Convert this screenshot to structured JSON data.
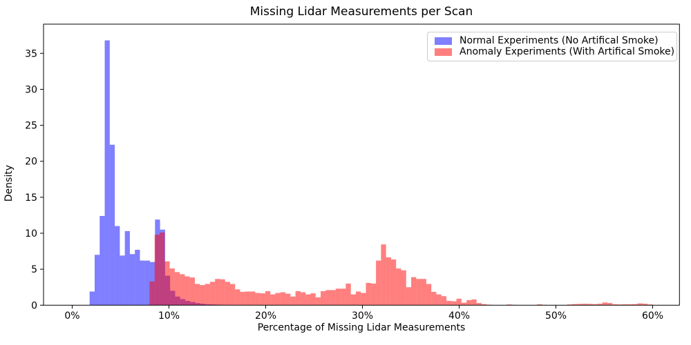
{
  "title": "Missing Lidar Measurements per Scan",
  "axes": {
    "xlabel": "Percentage of Missing Lidar Measurements",
    "ylabel": "Density",
    "x_tick_values": [
      0,
      10,
      20,
      30,
      40,
      50,
      60
    ],
    "x_tick_labels": [
      "0%",
      "10%",
      "20%",
      "30%",
      "40%",
      "50%",
      "60%"
    ],
    "y_tick_values": [
      0,
      5,
      10,
      15,
      20,
      25,
      30,
      35
    ],
    "y_tick_labels": [
      "0",
      "5",
      "10",
      "15",
      "20",
      "25",
      "30",
      "35"
    ]
  },
  "legend": {
    "items": [
      {
        "label": "Normal Experiments (No Artifical Smoke)",
        "color": "rgba(0,0,255,0.5)"
      },
      {
        "label": "Anomaly Experiments (With Artifical Smoke)",
        "color": "rgba(255,0,0,0.5)"
      }
    ]
  },
  "chart_data": {
    "type": "histogram",
    "title": "Missing Lidar Measurements per Scan",
    "xlabel": "Percentage of Missing Lidar Measurements",
    "ylabel": "Density",
    "x_unit": "percent",
    "xlim": [
      -3.0,
      62.8
    ],
    "ylim": [
      0,
      39.0
    ],
    "grid": false,
    "legend_position": "upper right",
    "overlap_blend": "red drawn over blue, both alpha 0.5 (overlap appears dark magenta #BF3F7F)",
    "series": [
      {
        "id": "normal",
        "name": "Normal Experiments (No Artifical Smoke)",
        "color": "rgba(0,0,255,0.5)",
        "bin_start": 1.8,
        "bin_width": 0.52,
        "values": [
          1.9,
          7.0,
          12.4,
          36.8,
          22.3,
          11.0,
          6.9,
          10.3,
          7.1,
          7.7,
          6.2,
          6.2,
          6.0,
          11.9,
          10.5,
          4.1,
          2.0,
          1.2,
          0.85,
          0.6,
          0.45,
          0.3,
          0.2,
          0.12,
          0.1,
          0.07,
          0.05
        ]
      },
      {
        "id": "anomaly",
        "name": "Anomaly Experiments (With Artifical Smoke)",
        "color": "rgba(255,0,0,0.5)",
        "bin_start": 8.0,
        "bin_width": 0.52,
        "values": [
          3.3,
          9.8,
          10.1,
          6.1,
          5.1,
          4.6,
          4.3,
          4.0,
          3.85,
          2.95,
          2.8,
          2.95,
          3.25,
          3.65,
          3.6,
          3.25,
          2.95,
          2.2,
          1.85,
          1.9,
          1.9,
          1.7,
          1.65,
          1.95,
          1.5,
          1.7,
          1.8,
          1.6,
          1.2,
          1.95,
          1.8,
          1.5,
          1.65,
          1.1,
          1.95,
          2.1,
          2.1,
          2.3,
          2.3,
          3.0,
          1.5,
          1.9,
          1.7,
          3.1,
          3.0,
          6.2,
          8.45,
          6.65,
          6.35,
          5.1,
          4.85,
          2.5,
          3.9,
          3.65,
          3.65,
          2.95,
          1.85,
          1.5,
          1.25,
          0.6,
          0.55,
          0.9,
          0.35,
          0.7,
          0.8,
          0.3,
          0.15,
          0.07,
          0,
          0,
          0,
          0.1,
          0.05,
          0,
          0,
          0,
          0,
          0.12,
          0.05,
          0,
          0,
          0,
          0,
          0.1,
          0.15,
          0.18,
          0.2,
          0.18,
          0.15,
          0.2,
          0.38,
          0.3,
          0.12,
          0.1,
          0.12,
          0.12,
          0.15,
          0.25,
          0.2,
          0.1
        ]
      }
    ]
  }
}
